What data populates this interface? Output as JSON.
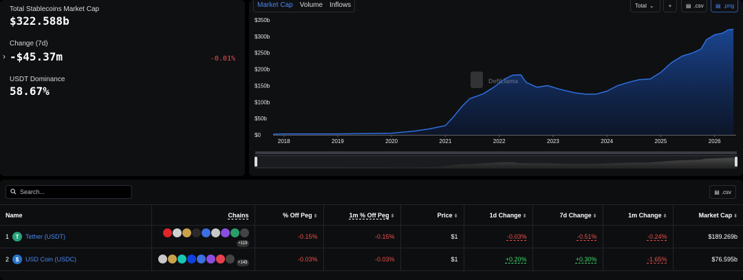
{
  "stats": {
    "total_label": "Total Stablecoins Market Cap",
    "total_value": "$322.588b",
    "change_label": "Change (7d)",
    "change_value": "-$45.37m",
    "change_pct": "-0.01%",
    "dominance_label": "USDT Dominance",
    "dominance_value": "58.67%"
  },
  "chart_tabs": [
    "Market Cap",
    "Volume",
    "Inflows"
  ],
  "chart_controls": {
    "total_select": "Total",
    "add": "+",
    "csv": ".csv",
    "png": ".png"
  },
  "watermark": "DefiLlama",
  "chart_data": {
    "type": "area",
    "x": [
      2017.8,
      2018.0,
      2019.0,
      2019.5,
      2020.0,
      2020.4,
      2020.7,
      2021.0,
      2021.15,
      2021.3,
      2021.45,
      2021.7,
      2021.9,
      2022.1,
      2022.25,
      2022.4,
      2022.5,
      2022.7,
      2022.9,
      2023.1,
      2023.4,
      2023.6,
      2023.8,
      2024.0,
      2024.2,
      2024.4,
      2024.6,
      2024.8,
      2025.0,
      2025.2,
      2025.4,
      2025.6,
      2025.75,
      2025.85,
      2026.0,
      2026.15,
      2026.25,
      2026.35
    ],
    "y": [
      2,
      3,
      3,
      4,
      5,
      11,
      18,
      28,
      55,
      85,
      110,
      125,
      145,
      170,
      182,
      183,
      160,
      145,
      150,
      140,
      128,
      124,
      124,
      133,
      150,
      160,
      168,
      170,
      190,
      220,
      240,
      250,
      262,
      290,
      305,
      310,
      320,
      322
    ],
    "ylim": [
      0,
      350
    ],
    "xlim": [
      2017.8,
      2026.4
    ],
    "yticks": [
      "$0",
      "$50b",
      "$100b",
      "$150b",
      "$200b",
      "$250b",
      "$300b",
      "$350b"
    ],
    "ytick_values": [
      0,
      50,
      100,
      150,
      200,
      250,
      300,
      350
    ],
    "xticks": [
      "2018",
      "2019",
      "2020",
      "2021",
      "2022",
      "2023",
      "2024",
      "2025",
      "2026"
    ],
    "xtick_values": [
      2018,
      2019,
      2020,
      2021,
      2022,
      2023,
      2024,
      2025,
      2026
    ],
    "line_color": "#2f6fe0",
    "grid": false
  },
  "search": {
    "placeholder": "Search..."
  },
  "table_csv": ".csv",
  "table": {
    "headers": [
      "Name",
      "Chains",
      "% Off Peg",
      "1m % Off Peg",
      "Price",
      "1d Change",
      "7d Change",
      "1m Change",
      "Market Cap"
    ],
    "rows": [
      {
        "rank": "1",
        "name": "Tether (USDT)",
        "symbol_letter": "T",
        "chain_more": "+119",
        "off_peg": "-0.15%",
        "off_peg_1m": "-0.15%",
        "price": "$1",
        "change_1d": "-0.03%",
        "change_7d": "-0.51%",
        "change_1m": "-0.24%",
        "mcap": "$189.269b"
      },
      {
        "rank": "2",
        "name": "USD Coin (USDC)",
        "symbol_letter": "$",
        "chain_more": "+143",
        "off_peg": "-0.03%",
        "off_peg_1m": "-0.03%",
        "price": "$1",
        "change_1d": "+0.20%",
        "change_7d": "+0.30%",
        "change_1m": "-1.65%",
        "mcap": "$76.595b"
      }
    ]
  },
  "chain_colors": {
    "row1": [
      "#e0242a",
      "#d0d0d0",
      "#c9a24a",
      "#2a2a2a",
      "#3c6fe0",
      "#c8c8c8",
      "#8a4de0",
      "#2a9e6a",
      "#444"
    ],
    "row2": [
      "#c8c8c8",
      "#c9a24a",
      "#18c7b3",
      "#1040e0",
      "#3c6fe0",
      "#8a4de0",
      "#e8414e",
      "#444"
    ]
  }
}
